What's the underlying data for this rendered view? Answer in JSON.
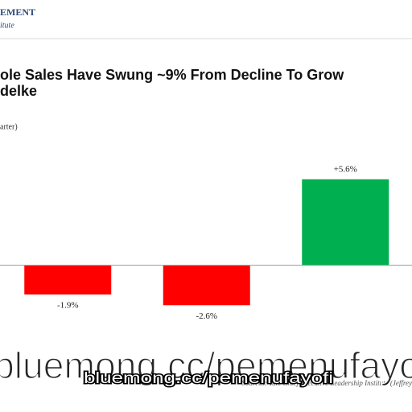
{
  "header": {
    "org": "EMENT",
    "org_sub": "itute"
  },
  "chart_data": {
    "type": "bar",
    "title_lines": [
      "ole Sales Have Swung ~9% From Decline To Grow",
      "delke"
    ],
    "axis_note": "arter)",
    "categories": [
      null,
      null,
      null
    ],
    "values": [
      -1.9,
      -2.6,
      5.6
    ],
    "value_labels": [
      "-1.9%",
      "-2.6%",
      "+5.6%"
    ],
    "colors": [
      "#ff0000",
      "#ff0000",
      "#00b050"
    ],
    "ylim": [
      -4,
      8
    ],
    "source": "Sources: Yale Chief Executive Leadership Institute (Jeffrey"
  },
  "watermark": {
    "big": "bluemong.cc/pemenufayo",
    "small": "bluemong.cc/pemenufayofi"
  }
}
